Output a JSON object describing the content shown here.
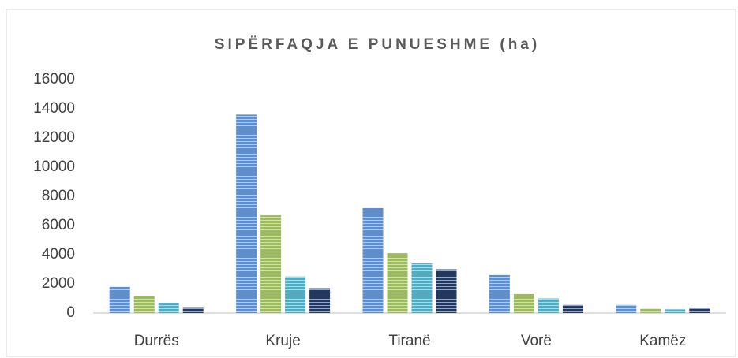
{
  "chart_data": {
    "type": "bar",
    "title": "SIPËRFAQJA E PUNUESHME (ha)",
    "categories": [
      "Durrës",
      "Kruje",
      "Tiranë",
      "Vorë",
      "Kamëz"
    ],
    "series": [
      {
        "color": "#5b8fd4",
        "values": [
          1800,
          13600,
          7200,
          2600,
          550
        ]
      },
      {
        "color": "#9bbb59",
        "values": [
          1150,
          6700,
          4100,
          1300,
          300
        ]
      },
      {
        "color": "#4bacc6",
        "values": [
          700,
          2500,
          3400,
          1000,
          250
        ]
      },
      {
        "color": "#1f3864",
        "values": [
          400,
          1700,
          3000,
          550,
          350
        ]
      }
    ],
    "ylim": [
      0,
      16000
    ],
    "yticks": [
      0,
      2000,
      4000,
      6000,
      8000,
      10000,
      12000,
      14000,
      16000
    ],
    "grid": false
  }
}
